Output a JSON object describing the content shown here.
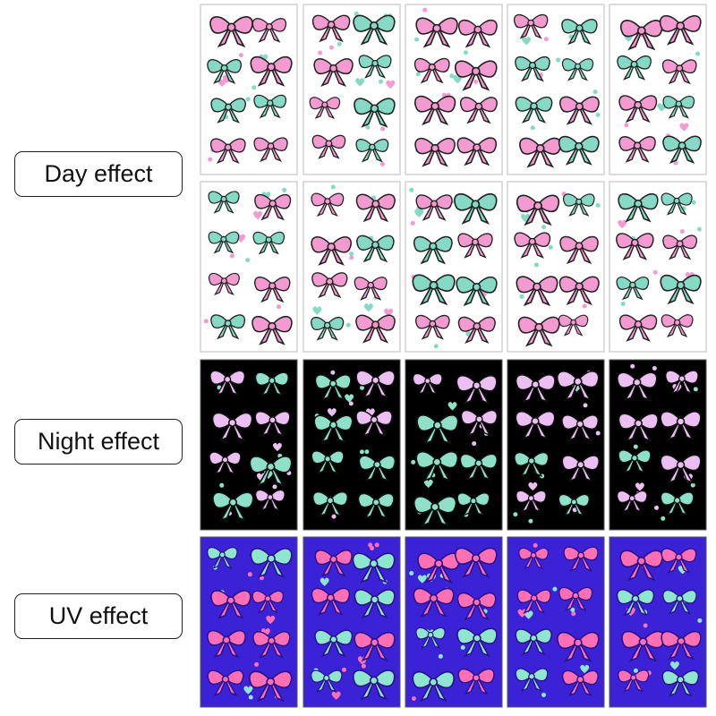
{
  "labels": [
    "Day effect",
    "Night effect",
    "UV effect"
  ]
}
